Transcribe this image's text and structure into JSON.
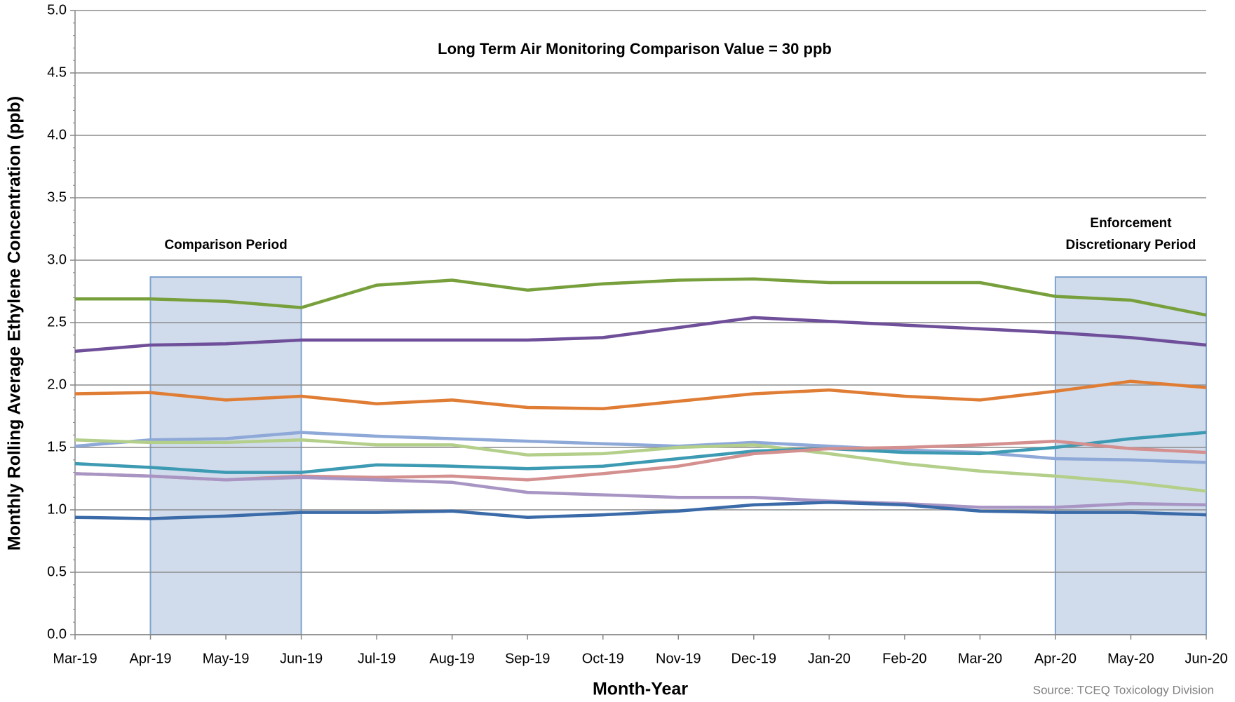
{
  "chart_data": {
    "type": "line",
    "x_label": "Month-Year",
    "y_label": "Monthly Rolling Average Ethylene Concentration (ppb)",
    "annotation": "Long Term Air Monitoring Comparison Value = 30 ppb",
    "source": "Source: TCEQ Toxicology Division",
    "categories": [
      "Mar-19",
      "Apr-19",
      "May-19",
      "Jun-19",
      "Jul-19",
      "Aug-19",
      "Sep-19",
      "Oct-19",
      "Nov-19",
      "Dec-19",
      "Jan-20",
      "Feb-20",
      "Mar-20",
      "Apr-20",
      "May-20",
      "Jun-20"
    ],
    "ylim": [
      0,
      5
    ],
    "yticks": [
      {
        "value": 0,
        "label": "0.0"
      },
      0.5,
      {
        "value": 1,
        "label": "1.0"
      },
      1.5,
      {
        "value": 2,
        "label": "2.0"
      },
      2.5,
      {
        "value": 3,
        "label": "3.0"
      },
      3.5,
      {
        "value": 4,
        "label": "4.0"
      },
      4.5,
      {
        "value": 5,
        "label": "5.0"
      }
    ],
    "grid": true,
    "shaded_regions": [
      {
        "start": "Apr-19",
        "end": "Jun-19",
        "label": [
          "Comparison Period"
        ],
        "color": "#d0dcec"
      },
      {
        "start": "Apr-20",
        "end": "Jun-20",
        "label": [
          "Enforcement",
          "Discretionary Period"
        ],
        "color": "#d0dcec"
      }
    ],
    "series": [
      {
        "color": "#77a03c",
        "values": [
          2.69,
          2.69,
          2.67,
          2.62,
          2.8,
          2.84,
          2.76,
          2.81,
          2.84,
          2.85,
          2.82,
          2.82,
          2.82,
          2.71,
          2.68,
          2.56
        ]
      },
      {
        "color": "#6f4f9a",
        "values": [
          2.27,
          2.32,
          2.33,
          2.36,
          2.36,
          2.36,
          2.36,
          2.38,
          2.46,
          2.54,
          2.51,
          2.48,
          2.45,
          2.42,
          2.38,
          2.32
        ]
      },
      {
        "color": "#e07d35",
        "values": [
          1.93,
          1.94,
          1.88,
          1.91,
          1.85,
          1.88,
          1.82,
          1.81,
          1.87,
          1.93,
          1.96,
          1.91,
          1.88,
          1.95,
          2.03,
          1.98
        ]
      },
      {
        "color": "#8ea9d8",
        "values": [
          1.51,
          1.56,
          1.57,
          1.62,
          1.59,
          1.57,
          1.55,
          1.53,
          1.51,
          1.54,
          1.51,
          1.48,
          1.46,
          1.41,
          1.4,
          1.38
        ]
      },
      {
        "color": "#b3cf8a",
        "values": [
          1.56,
          1.54,
          1.54,
          1.56,
          1.52,
          1.52,
          1.44,
          1.45,
          1.5,
          1.52,
          1.45,
          1.37,
          1.31,
          1.27,
          1.22,
          1.15
        ]
      },
      {
        "color": "#3d9ab3",
        "values": [
          1.37,
          1.34,
          1.3,
          1.3,
          1.36,
          1.35,
          1.33,
          1.35,
          1.41,
          1.47,
          1.49,
          1.46,
          1.45,
          1.5,
          1.57,
          1.62
        ]
      },
      {
        "color": "#d48f8f",
        "values": [
          1.29,
          1.27,
          1.24,
          1.27,
          1.26,
          1.27,
          1.24,
          1.29,
          1.35,
          1.45,
          1.49,
          1.5,
          1.52,
          1.55,
          1.49,
          1.46
        ]
      },
      {
        "color": "#a895c4",
        "values": [
          1.29,
          1.27,
          1.24,
          1.26,
          1.24,
          1.22,
          1.14,
          1.12,
          1.1,
          1.1,
          1.07,
          1.05,
          1.02,
          1.02,
          1.05,
          1.04
        ]
      },
      {
        "color": "#3a6aa8",
        "values": [
          0.94,
          0.93,
          0.95,
          0.98,
          0.98,
          0.99,
          0.94,
          0.96,
          0.99,
          1.04,
          1.06,
          1.04,
          0.99,
          0.98,
          0.98,
          0.96
        ]
      }
    ]
  }
}
